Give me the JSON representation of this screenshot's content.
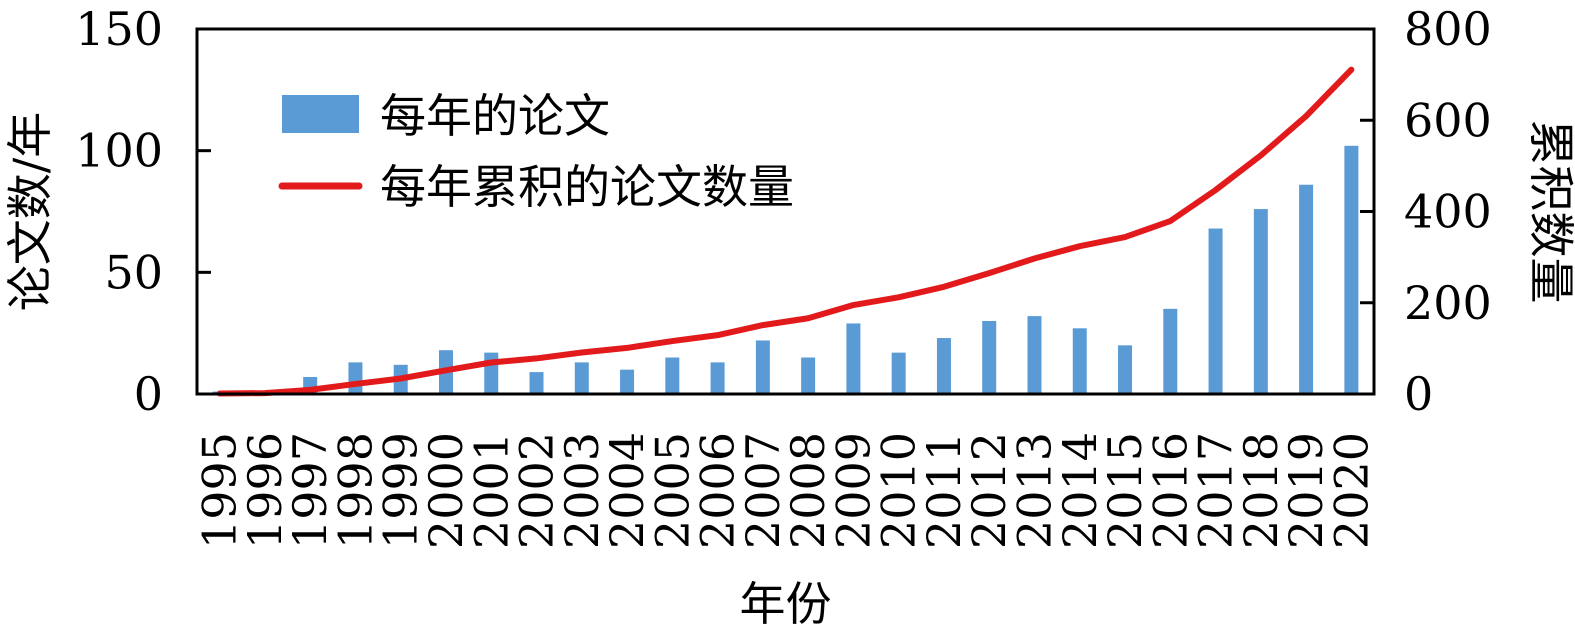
{
  "chart_data": {
    "type": "bar",
    "categories": [
      "1995",
      "1996",
      "1997",
      "1998",
      "1999",
      "2000",
      "2001",
      "2002",
      "2003",
      "2004",
      "2005",
      "2006",
      "2007",
      "2008",
      "2009",
      "2010",
      "2011",
      "2012",
      "2013",
      "2014",
      "2015",
      "2016",
      "2017",
      "2018",
      "2019",
      "2020"
    ],
    "series": [
      {
        "name": "每年的论文",
        "type": "bar",
        "axis": "left",
        "color": "#5b9bd5",
        "values": [
          1,
          1,
          7,
          13,
          12,
          18,
          17,
          9,
          13,
          10,
          15,
          13,
          22,
          15,
          29,
          17,
          23,
          30,
          32,
          27,
          20,
          35,
          68,
          76,
          86,
          102
        ]
      },
      {
        "name": "每年累积的论文数量",
        "type": "line",
        "axis": "right",
        "color": "#e31a1c",
        "values": [
          1,
          2,
          9,
          22,
          34,
          52,
          69,
          78,
          91,
          101,
          116,
          129,
          151,
          166,
          195,
          212,
          235,
          265,
          297,
          324,
          344,
          379,
          447,
          523,
          609,
          711
        ]
      }
    ],
    "xlabel": "年份",
    "ylabel_left": "论文数/年",
    "ylabel_right": "累积数量",
    "ylim_left": [
      0,
      150
    ],
    "yticks_left": [
      0,
      50,
      100,
      150
    ],
    "ylim_right": [
      0,
      800
    ],
    "yticks_right": [
      0,
      200,
      400,
      600,
      800
    ],
    "legend_position": "top-left",
    "grid": false
  }
}
